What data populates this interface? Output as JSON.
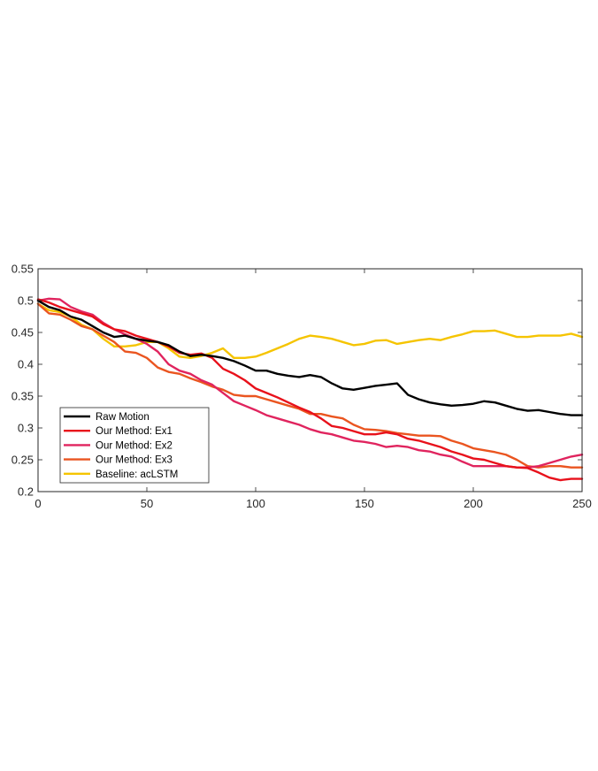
{
  "chart_data": {
    "type": "line",
    "title": "",
    "xlabel": "",
    "ylabel": "",
    "xlim": [
      0,
      250
    ],
    "ylim": [
      0.2,
      0.55
    ],
    "xticks": [
      0,
      50,
      100,
      150,
      200,
      250
    ],
    "yticks": [
      0.2,
      0.25,
      0.3,
      0.35,
      0.4,
      0.45,
      0.5,
      0.55
    ],
    "xtick_labels": [
      "0",
      "50",
      "100",
      "150",
      "200",
      "250"
    ],
    "ytick_labels": [
      "0.2",
      "0.25",
      "0.3",
      "0.35",
      "0.4",
      "0.45",
      "0.5",
      "0.55"
    ],
    "grid": false,
    "legend_position": "bottom-left",
    "series": [
      {
        "name": "Raw Motion",
        "color": "#000000",
        "points": [
          [
            0,
            0.5
          ],
          [
            5,
            0.49
          ],
          [
            10,
            0.485
          ],
          [
            15,
            0.475
          ],
          [
            20,
            0.47
          ],
          [
            25,
            0.46
          ],
          [
            30,
            0.45
          ],
          [
            35,
            0.443
          ],
          [
            40,
            0.445
          ],
          [
            45,
            0.44
          ],
          [
            50,
            0.437
          ],
          [
            55,
            0.435
          ],
          [
            60,
            0.43
          ],
          [
            65,
            0.42
          ],
          [
            70,
            0.413
          ],
          [
            75,
            0.415
          ],
          [
            80,
            0.413
          ],
          [
            85,
            0.41
          ],
          [
            90,
            0.405
          ],
          [
            95,
            0.398
          ],
          [
            100,
            0.39
          ],
          [
            105,
            0.39
          ],
          [
            110,
            0.385
          ],
          [
            115,
            0.382
          ],
          [
            120,
            0.38
          ],
          [
            125,
            0.383
          ],
          [
            130,
            0.38
          ],
          [
            135,
            0.37
          ],
          [
            140,
            0.362
          ],
          [
            145,
            0.36
          ],
          [
            150,
            0.363
          ],
          [
            155,
            0.366
          ],
          [
            160,
            0.368
          ],
          [
            165,
            0.37
          ],
          [
            170,
            0.352
          ],
          [
            175,
            0.345
          ],
          [
            180,
            0.34
          ],
          [
            185,
            0.337
          ],
          [
            190,
            0.335
          ],
          [
            195,
            0.336
          ],
          [
            200,
            0.338
          ],
          [
            205,
            0.342
          ],
          [
            210,
            0.34
          ],
          [
            215,
            0.335
          ],
          [
            220,
            0.33
          ],
          [
            225,
            0.327
          ],
          [
            230,
            0.328
          ],
          [
            235,
            0.325
          ],
          [
            240,
            0.322
          ],
          [
            245,
            0.32
          ],
          [
            250,
            0.32
          ]
        ]
      },
      {
        "name": "Our Method: Ex1",
        "color": "#e8111b",
        "points": [
          [
            0,
            0.502
          ],
          [
            5,
            0.497
          ],
          [
            10,
            0.49
          ],
          [
            15,
            0.485
          ],
          [
            20,
            0.48
          ],
          [
            25,
            0.475
          ],
          [
            30,
            0.463
          ],
          [
            35,
            0.455
          ],
          [
            40,
            0.452
          ],
          [
            45,
            0.445
          ],
          [
            50,
            0.44
          ],
          [
            55,
            0.435
          ],
          [
            60,
            0.428
          ],
          [
            65,
            0.418
          ],
          [
            70,
            0.415
          ],
          [
            75,
            0.417
          ],
          [
            80,
            0.41
          ],
          [
            85,
            0.393
          ],
          [
            90,
            0.385
          ],
          [
            95,
            0.375
          ],
          [
            100,
            0.362
          ],
          [
            105,
            0.355
          ],
          [
            110,
            0.348
          ],
          [
            115,
            0.34
          ],
          [
            120,
            0.332
          ],
          [
            125,
            0.325
          ],
          [
            130,
            0.315
          ],
          [
            135,
            0.303
          ],
          [
            140,
            0.3
          ],
          [
            145,
            0.295
          ],
          [
            150,
            0.29
          ],
          [
            155,
            0.29
          ],
          [
            160,
            0.293
          ],
          [
            165,
            0.29
          ],
          [
            170,
            0.283
          ],
          [
            175,
            0.28
          ],
          [
            180,
            0.275
          ],
          [
            185,
            0.27
          ],
          [
            190,
            0.263
          ],
          [
            195,
            0.258
          ],
          [
            200,
            0.252
          ],
          [
            205,
            0.25
          ],
          [
            210,
            0.245
          ],
          [
            215,
            0.24
          ],
          [
            220,
            0.238
          ],
          [
            225,
            0.237
          ],
          [
            230,
            0.23
          ],
          [
            235,
            0.222
          ],
          [
            240,
            0.218
          ],
          [
            245,
            0.22
          ],
          [
            250,
            0.22
          ]
        ]
      },
      {
        "name": "Our Method: Ex2",
        "color": "#e0245e",
        "points": [
          [
            0,
            0.5
          ],
          [
            5,
            0.503
          ],
          [
            10,
            0.502
          ],
          [
            15,
            0.49
          ],
          [
            20,
            0.483
          ],
          [
            25,
            0.478
          ],
          [
            30,
            0.465
          ],
          [
            35,
            0.455
          ],
          [
            40,
            0.447
          ],
          [
            45,
            0.44
          ],
          [
            50,
            0.432
          ],
          [
            55,
            0.42
          ],
          [
            60,
            0.4
          ],
          [
            65,
            0.39
          ],
          [
            70,
            0.385
          ],
          [
            75,
            0.375
          ],
          [
            80,
            0.368
          ],
          [
            85,
            0.355
          ],
          [
            90,
            0.342
          ],
          [
            95,
            0.335
          ],
          [
            100,
            0.328
          ],
          [
            105,
            0.32
          ],
          [
            110,
            0.315
          ],
          [
            115,
            0.31
          ],
          [
            120,
            0.305
          ],
          [
            125,
            0.298
          ],
          [
            130,
            0.293
          ],
          [
            135,
            0.29
          ],
          [
            140,
            0.285
          ],
          [
            145,
            0.28
          ],
          [
            150,
            0.278
          ],
          [
            155,
            0.275
          ],
          [
            160,
            0.27
          ],
          [
            165,
            0.272
          ],
          [
            170,
            0.27
          ],
          [
            175,
            0.265
          ],
          [
            180,
            0.263
          ],
          [
            185,
            0.258
          ],
          [
            190,
            0.255
          ],
          [
            195,
            0.247
          ],
          [
            200,
            0.24
          ],
          [
            205,
            0.24
          ],
          [
            210,
            0.24
          ],
          [
            215,
            0.24
          ],
          [
            220,
            0.238
          ],
          [
            225,
            0.238
          ],
          [
            230,
            0.24
          ],
          [
            235,
            0.245
          ],
          [
            240,
            0.25
          ],
          [
            245,
            0.255
          ],
          [
            250,
            0.258
          ]
        ]
      },
      {
        "name": "Our Method: Ex3",
        "color": "#ea5520",
        "points": [
          [
            0,
            0.495
          ],
          [
            5,
            0.48
          ],
          [
            10,
            0.478
          ],
          [
            15,
            0.47
          ],
          [
            20,
            0.46
          ],
          [
            25,
            0.455
          ],
          [
            30,
            0.445
          ],
          [
            35,
            0.435
          ],
          [
            40,
            0.42
          ],
          [
            45,
            0.418
          ],
          [
            50,
            0.41
          ],
          [
            55,
            0.395
          ],
          [
            60,
            0.388
          ],
          [
            65,
            0.385
          ],
          [
            70,
            0.378
          ],
          [
            75,
            0.372
          ],
          [
            80,
            0.365
          ],
          [
            85,
            0.36
          ],
          [
            90,
            0.352
          ],
          [
            95,
            0.35
          ],
          [
            100,
            0.35
          ],
          [
            105,
            0.345
          ],
          [
            110,
            0.34
          ],
          [
            115,
            0.335
          ],
          [
            120,
            0.33
          ],
          [
            125,
            0.322
          ],
          [
            130,
            0.322
          ],
          [
            135,
            0.318
          ],
          [
            140,
            0.315
          ],
          [
            145,
            0.305
          ],
          [
            150,
            0.298
          ],
          [
            155,
            0.297
          ],
          [
            160,
            0.295
          ],
          [
            165,
            0.292
          ],
          [
            170,
            0.29
          ],
          [
            175,
            0.288
          ],
          [
            180,
            0.288
          ],
          [
            185,
            0.287
          ],
          [
            190,
            0.28
          ],
          [
            195,
            0.275
          ],
          [
            200,
            0.268
          ],
          [
            205,
            0.265
          ],
          [
            210,
            0.262
          ],
          [
            215,
            0.258
          ],
          [
            220,
            0.25
          ],
          [
            225,
            0.24
          ],
          [
            230,
            0.238
          ],
          [
            235,
            0.24
          ],
          [
            240,
            0.24
          ],
          [
            245,
            0.238
          ],
          [
            250,
            0.238
          ]
        ]
      },
      {
        "name": "Baseline: acLSTM",
        "color": "#f5c400",
        "points": [
          [
            0,
            0.495
          ],
          [
            5,
            0.485
          ],
          [
            10,
            0.482
          ],
          [
            15,
            0.475
          ],
          [
            20,
            0.462
          ],
          [
            25,
            0.455
          ],
          [
            30,
            0.44
          ],
          [
            35,
            0.428
          ],
          [
            40,
            0.428
          ],
          [
            45,
            0.43
          ],
          [
            50,
            0.435
          ],
          [
            55,
            0.435
          ],
          [
            60,
            0.425
          ],
          [
            65,
            0.412
          ],
          [
            70,
            0.41
          ],
          [
            75,
            0.413
          ],
          [
            80,
            0.418
          ],
          [
            85,
            0.425
          ],
          [
            90,
            0.41
          ],
          [
            95,
            0.41
          ],
          [
            100,
            0.412
          ],
          [
            105,
            0.418
          ],
          [
            110,
            0.425
          ],
          [
            115,
            0.432
          ],
          [
            120,
            0.44
          ],
          [
            125,
            0.445
          ],
          [
            130,
            0.443
          ],
          [
            135,
            0.44
          ],
          [
            140,
            0.435
          ],
          [
            145,
            0.43
          ],
          [
            150,
            0.432
          ],
          [
            155,
            0.437
          ],
          [
            160,
            0.438
          ],
          [
            165,
            0.432
          ],
          [
            170,
            0.435
          ],
          [
            175,
            0.438
          ],
          [
            180,
            0.44
          ],
          [
            185,
            0.438
          ],
          [
            190,
            0.443
          ],
          [
            195,
            0.447
          ],
          [
            200,
            0.452
          ],
          [
            205,
            0.452
          ],
          [
            210,
            0.453
          ],
          [
            215,
            0.448
          ],
          [
            220,
            0.443
          ],
          [
            225,
            0.443
          ],
          [
            230,
            0.445
          ],
          [
            235,
            0.445
          ],
          [
            240,
            0.445
          ],
          [
            245,
            0.448
          ],
          [
            250,
            0.443
          ]
        ]
      }
    ]
  }
}
